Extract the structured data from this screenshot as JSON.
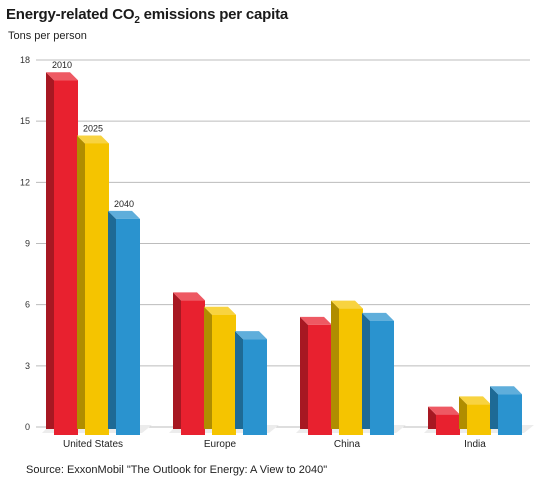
{
  "title": {
    "main": "Energy-related CO",
    "sub": "2",
    "rest": " emissions per capita"
  },
  "ylabel": "Tons per person",
  "source": "Source:  ExxonMobil \"The Outlook for Energy:  A View to 2040\"",
  "colors": {
    "2010": "#e8212f",
    "2025": "#f5c400",
    "2040": "#2a93cf",
    "grid": "#bcbcbc",
    "axis": "#888888"
  },
  "chart_data": {
    "type": "bar",
    "title": "Energy-related CO2 emissions per capita",
    "ylabel": "Tons per person",
    "xlabel": "",
    "categories": [
      "United States",
      "Europe",
      "China",
      "India"
    ],
    "series": [
      {
        "name": "2010",
        "values": [
          17.4,
          6.6,
          5.4,
          1.0
        ]
      },
      {
        "name": "2025",
        "values": [
          14.3,
          5.9,
          6.2,
          1.5
        ]
      },
      {
        "name": "2040",
        "values": [
          10.6,
          4.7,
          5.6,
          2.0
        ]
      }
    ],
    "yticks": [
      0,
      3,
      6,
      9,
      12,
      15,
      18
    ],
    "ylim": [
      0,
      18
    ],
    "grid": true,
    "data_labels_on": "United States",
    "style": "3d-bar"
  }
}
